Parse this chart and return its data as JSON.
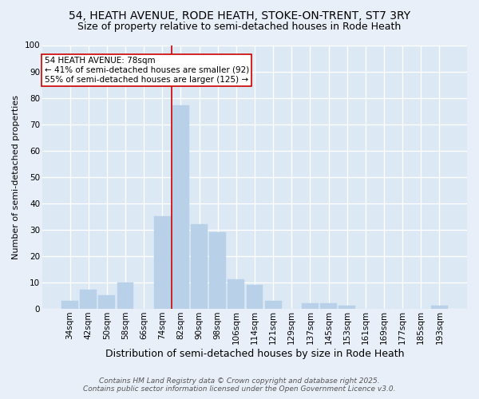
{
  "title1": "54, HEATH AVENUE, RODE HEATH, STOKE-ON-TRENT, ST7 3RY",
  "title2": "Size of property relative to semi-detached houses in Rode Heath",
  "xlabel": "Distribution of semi-detached houses by size in Rode Heath",
  "ylabel": "Number of semi-detached properties",
  "categories": [
    "34sqm",
    "42sqm",
    "50sqm",
    "58sqm",
    "66sqm",
    "74sqm",
    "82sqm",
    "90sqm",
    "98sqm",
    "106sqm",
    "114sqm",
    "121sqm",
    "129sqm",
    "137sqm",
    "145sqm",
    "153sqm",
    "161sqm",
    "169sqm",
    "177sqm",
    "185sqm",
    "193sqm"
  ],
  "values": [
    3,
    7,
    5,
    10,
    0,
    35,
    77,
    32,
    29,
    11,
    9,
    3,
    0,
    2,
    2,
    1,
    0,
    0,
    0,
    0,
    1
  ],
  "bar_color": "#b8d0e8",
  "bar_edgecolor": "#b8d0e8",
  "vline_color": "#cc0000",
  "annotation_title": "54 HEATH AVENUE: 78sqm",
  "annotation_line1": "← 41% of semi-detached houses are smaller (92)",
  "annotation_line2": "55% of semi-detached houses are larger (125) →",
  "annotation_box_color": "white",
  "annotation_box_edgecolor": "#cc0000",
  "ylim": [
    0,
    100
  ],
  "yticks": [
    0,
    10,
    20,
    30,
    40,
    50,
    60,
    70,
    80,
    90,
    100
  ],
  "background_color": "#e8eff8",
  "plot_background": "#dce8f4",
  "grid_color": "white",
  "footer1": "Contains HM Land Registry data © Crown copyright and database right 2025.",
  "footer2": "Contains public sector information licensed under the Open Government Licence v3.0.",
  "title1_fontsize": 10,
  "title2_fontsize": 9,
  "xlabel_fontsize": 9,
  "ylabel_fontsize": 8,
  "tick_fontsize": 7.5,
  "annotation_fontsize": 7.5,
  "footer_fontsize": 6.5
}
